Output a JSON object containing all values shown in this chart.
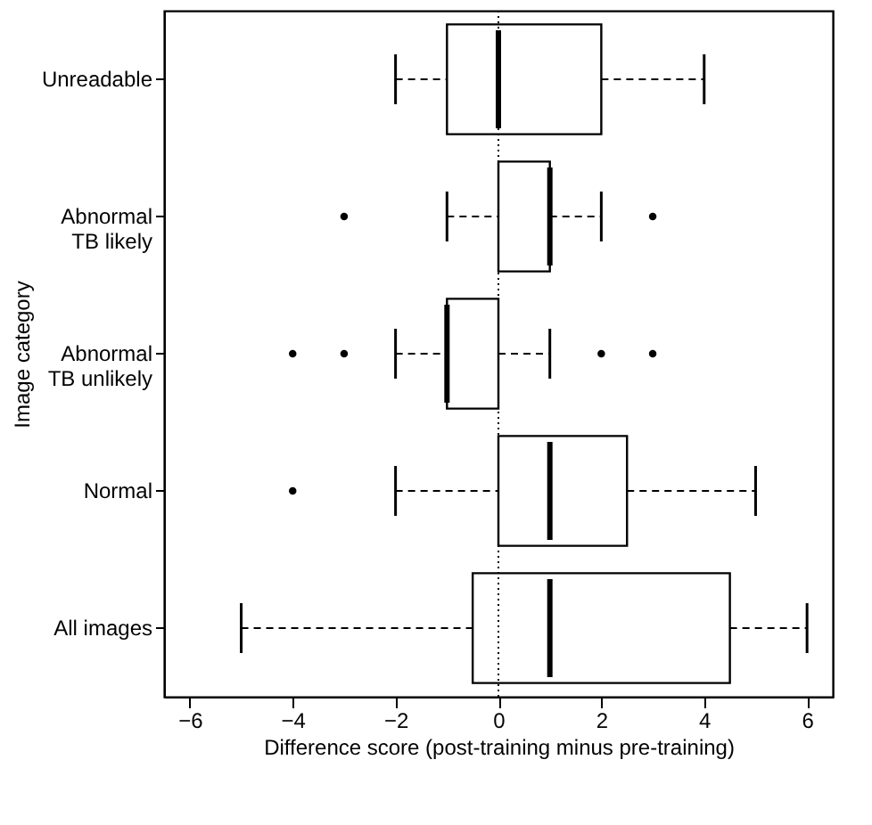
{
  "chart_data": {
    "type": "box",
    "orientation": "horizontal",
    "xlabel": "Difference score (post-training minus pre-training)",
    "ylabel": "Image category",
    "categories": [
      "Unreadable",
      "Abnormal\nTB likely",
      "Abnormal\nTB unlikely",
      "Normal",
      "All images"
    ],
    "boxes": [
      {
        "low": -2,
        "q1": -1,
        "median": 0,
        "q3": 2,
        "high": 4
      },
      {
        "low": -1,
        "q1": 0,
        "median": 1,
        "q3": 1,
        "high": 2,
        "outliers": [
          -3,
          3
        ]
      },
      {
        "low": -2,
        "q1": -1,
        "median": -1,
        "q3": 0,
        "high": 1,
        "outliers": [
          -4,
          -3,
          2,
          3
        ]
      },
      {
        "low": -2,
        "q1": 0,
        "median": 1,
        "q3": 2.5,
        "high": 5,
        "outliers": [
          -4
        ]
      },
      {
        "low": -5,
        "q1": -0.5,
        "median": 1,
        "q3": 4.5,
        "high": 6
      }
    ],
    "xlim": [
      -6.5,
      6.5
    ],
    "xticks": [
      -6,
      -4,
      -2,
      0,
      2,
      4,
      6
    ],
    "ref_lines": [
      {
        "axis": "x",
        "value": 0,
        "line_style": "dotted",
        "color": "#000000"
      }
    ],
    "grid": false
  }
}
